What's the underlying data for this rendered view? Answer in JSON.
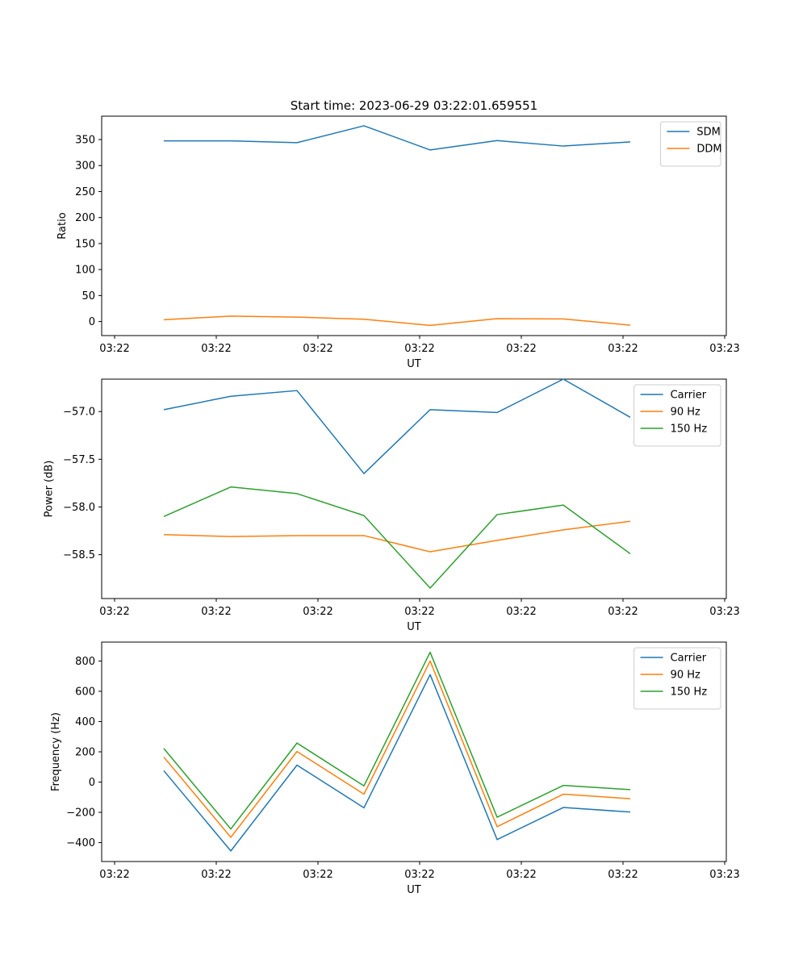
{
  "figure": {
    "title": "Start time: 2023-06-29 03:22:01.659551"
  },
  "colors": {
    "blue": "#1f77b4",
    "orange": "#ff7f0e",
    "green": "#2ca02c",
    "axis": "#000000",
    "legend_border": "#cccccc"
  },
  "chart_data": [
    {
      "type": "line",
      "title": "Start time: 2023-06-29 03:22:01.659551",
      "xlabel": "UT",
      "ylabel": "Ratio",
      "x": [
        "03:22:01.66",
        "03:22:02.32",
        "03:22:02.98",
        "03:22:03.64",
        "03:22:04.30",
        "03:22:04.96",
        "03:22:05.62",
        "03:22:06.28"
      ],
      "x_ticks": [
        "03:22",
        "03:22",
        "03:22",
        "03:22",
        "03:22",
        "03:22",
        "03:23"
      ],
      "ylim": [
        -27,
        395
      ],
      "y_ticks": [
        0,
        50,
        100,
        150,
        200,
        250,
        300,
        350
      ],
      "legend": "top-right",
      "grid": false,
      "series": [
        {
          "name": "SDM",
          "color": "#1f77b4",
          "values": [
            347.5,
            347.5,
            344,
            376.5,
            330,
            348,
            337.5,
            345.5
          ]
        },
        {
          "name": "DDM",
          "color": "#ff7f0e",
          "values": [
            3.5,
            10.5,
            8.5,
            4.5,
            -7.5,
            5.5,
            5,
            -7
          ]
        }
      ]
    },
    {
      "type": "line",
      "xlabel": "UT",
      "ylabel": "Power (dB)",
      "x": [
        "03:22:01.66",
        "03:22:02.32",
        "03:22:02.98",
        "03:22:03.64",
        "03:22:04.30",
        "03:22:04.96",
        "03:22:05.62",
        "03:22:06.28"
      ],
      "x_ticks": [
        "03:22",
        "03:22",
        "03:22",
        "03:22",
        "03:22",
        "03:22",
        "03:23"
      ],
      "ylim": [
        -58.96,
        -56.66
      ],
      "y_ticks": [
        -57.0,
        -57.5,
        -58.0,
        -58.5
      ],
      "y_tick_labels": [
        "−57.0",
        "−57.5",
        "−58.0",
        "−58.5"
      ],
      "legend": "top-right",
      "grid": false,
      "series": [
        {
          "name": "Carrier",
          "color": "#1f77b4",
          "values": [
            -56.98,
            -56.84,
            -56.78,
            -57.65,
            -56.98,
            -57.01,
            -56.66,
            -57.06
          ]
        },
        {
          "name": "90 Hz",
          "color": "#ff7f0e",
          "values": [
            -58.29,
            -58.31,
            -58.3,
            -58.3,
            -58.47,
            -58.35,
            -58.24,
            -58.15
          ]
        },
        {
          "name": "150 Hz",
          "color": "#2ca02c",
          "values": [
            -58.1,
            -57.79,
            -57.86,
            -58.09,
            -58.85,
            -58.08,
            -57.98,
            -58.49
          ]
        }
      ]
    },
    {
      "type": "line",
      "xlabel": "UT",
      "ylabel": "Frequency (Hz)",
      "x": [
        "03:22:01.66",
        "03:22:02.32",
        "03:22:02.98",
        "03:22:03.64",
        "03:22:04.30",
        "03:22:04.96",
        "03:22:05.62",
        "03:22:06.28"
      ],
      "x_ticks": [
        "03:22",
        "03:22",
        "03:22",
        "03:22",
        "03:22",
        "03:22",
        "03:23"
      ],
      "ylim": [
        -525,
        925
      ],
      "y_ticks": [
        -400,
        -200,
        0,
        200,
        400,
        600,
        800
      ],
      "y_tick_labels": [
        "−400",
        "−200",
        "0",
        "200",
        "400",
        "600",
        "800"
      ],
      "legend": "top-right",
      "grid": false,
      "series": [
        {
          "name": "Carrier",
          "color": "#1f77b4",
          "values": [
            75,
            -455,
            112,
            -170,
            710,
            -380,
            -168,
            -198
          ]
        },
        {
          "name": "90 Hz",
          "color": "#ff7f0e",
          "values": [
            165,
            -365,
            202,
            -80,
            800,
            -295,
            -80,
            -110
          ]
        },
        {
          "name": "150 Hz",
          "color": "#2ca02c",
          "values": [
            222,
            -310,
            258,
            -25,
            858,
            -232,
            -22,
            -50
          ]
        }
      ]
    }
  ]
}
